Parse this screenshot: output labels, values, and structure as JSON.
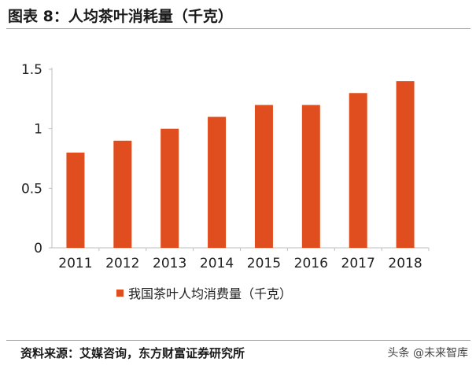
{
  "header": {
    "title": "图表 8：人均茶叶消耗量（千克）"
  },
  "colors": {
    "bar": "#E04E1F",
    "axis": "#bfbfbf",
    "text": "#222222"
  },
  "chart_data": {
    "type": "bar",
    "categories": [
      "2011",
      "2012",
      "2013",
      "2014",
      "2015",
      "2016",
      "2017",
      "2018"
    ],
    "series": [
      {
        "name": "我国茶叶人均消费量（千克）",
        "values": [
          0.8,
          0.9,
          1.0,
          1.1,
          1.2,
          1.2,
          1.3,
          1.4
        ]
      }
    ],
    "ylim": [
      0,
      1.5
    ],
    "yticks": [
      "0",
      "0.5",
      "1",
      "1.5"
    ],
    "grid": false,
    "legend_position": "bottom"
  },
  "footer": {
    "source": "资料来源：艾媒咨询，东方财富证券研究所",
    "watermark": "头条 @未来智库"
  }
}
